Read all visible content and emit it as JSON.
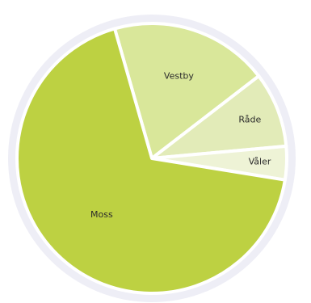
{
  "chart_data": {
    "type": "pie",
    "title": "",
    "slices": [
      {
        "label": "Vestby",
        "value": 19,
        "color": "#d9e79a"
      },
      {
        "label": "Råde",
        "value": 9,
        "color": "#e2ebb8"
      },
      {
        "label": "Våler",
        "value": 4,
        "color": "#eef3d6"
      },
      {
        "label": "Moss",
        "value": 68,
        "color": "#bdd142"
      }
    ],
    "rim_color": "#eeeef6",
    "separator_color": "#ffffff",
    "start_angle_deg": -16
  }
}
